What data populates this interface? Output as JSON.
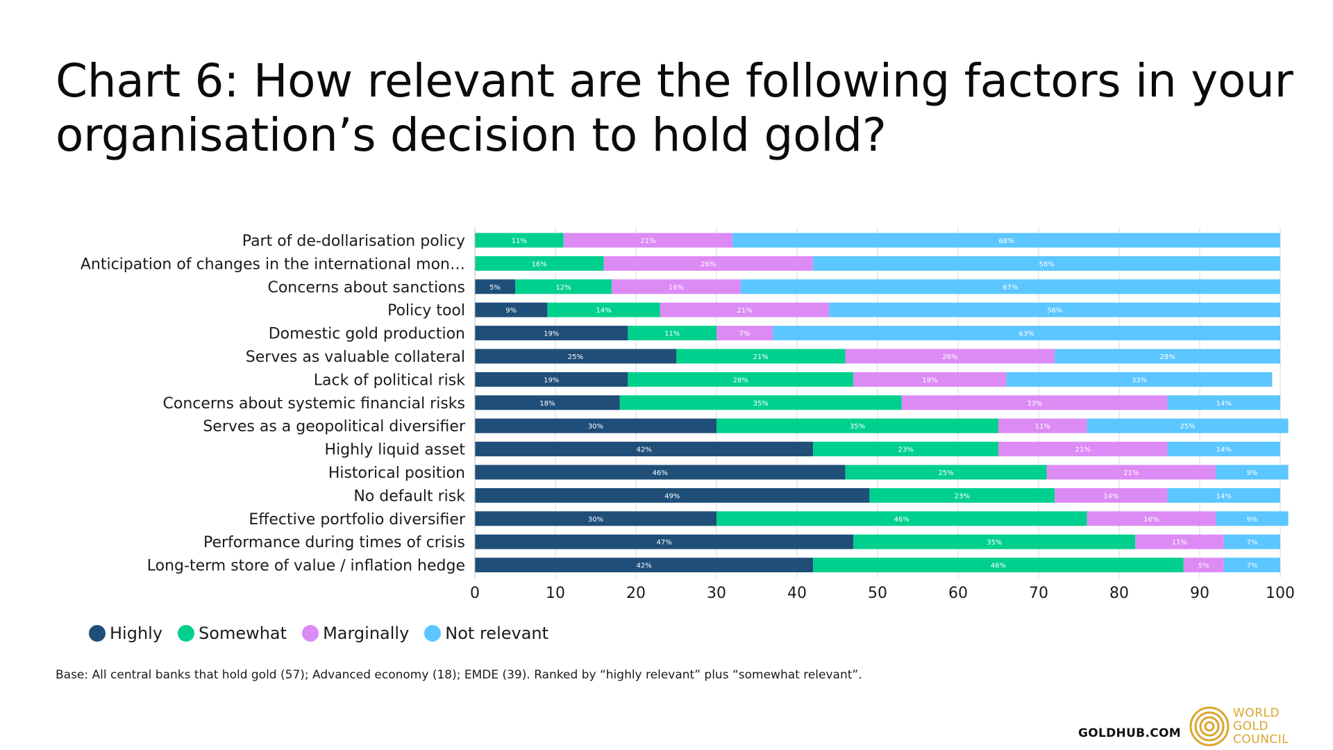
{
  "title_line1": "Chart 6: How relevant are the following factors in your",
  "title_line2": "organisation’s decision to hold gold?",
  "footnote": "Base: All central banks that hold gold (57); Advanced economy (18); EMDE (39). Ranked by “highly relevant” plus “somewhat relevant”.",
  "footer": {
    "site": "GOLDHUB.COM",
    "logo_lines": [
      "WORLD",
      "GOLD",
      "COUNCIL"
    ]
  },
  "colors": {
    "Highly": "#1f4e79",
    "Somewhat": "#00d08e",
    "Marginally": "#dc8bf5",
    "Not relevant": "#5bc6ff",
    "logo_gold": "#d9a52b"
  },
  "chart_data": {
    "type": "bar",
    "orientation": "horizontal",
    "stacked": true,
    "categories": [
      "Part of de-dollarisation policy",
      "Anticipation of changes in the international mon…",
      "Concerns about sanctions",
      "Policy tool",
      "Domestic gold production",
      "Serves as valuable collateral",
      "Lack of political risk",
      "Concerns about systemic financial risks",
      "Serves as a geopolitical diversifier",
      "Highly liquid asset",
      "Historical position",
      "No default risk",
      "Effective portfolio diversifier",
      "Performance during times of crisis",
      "Long-term store of value / inflation hedge"
    ],
    "series": [
      {
        "name": "Highly",
        "values": [
          0,
          0,
          5,
          9,
          19,
          25,
          19,
          18,
          30,
          42,
          46,
          49,
          30,
          47,
          42
        ]
      },
      {
        "name": "Somewhat",
        "values": [
          11,
          16,
          12,
          14,
          11,
          21,
          28,
          35,
          35,
          23,
          25,
          23,
          46,
          35,
          46
        ]
      },
      {
        "name": "Marginally",
        "values": [
          21,
          26,
          16,
          21,
          7,
          26,
          19,
          33,
          11,
          21,
          21,
          14,
          16,
          11,
          5
        ]
      },
      {
        "name": "Not relevant",
        "values": [
          68,
          58,
          67,
          56,
          63,
          28,
          33,
          14,
          25,
          14,
          9,
          14,
          9,
          7,
          7
        ]
      }
    ],
    "xlim": [
      0,
      100
    ],
    "xticks": [
      0,
      10,
      20,
      30,
      40,
      50,
      60,
      70,
      80,
      90,
      100
    ],
    "value_suffix": "%",
    "xlabel": "",
    "ylabel": "",
    "grid": "vertical",
    "legend_position": "bottom-left"
  }
}
